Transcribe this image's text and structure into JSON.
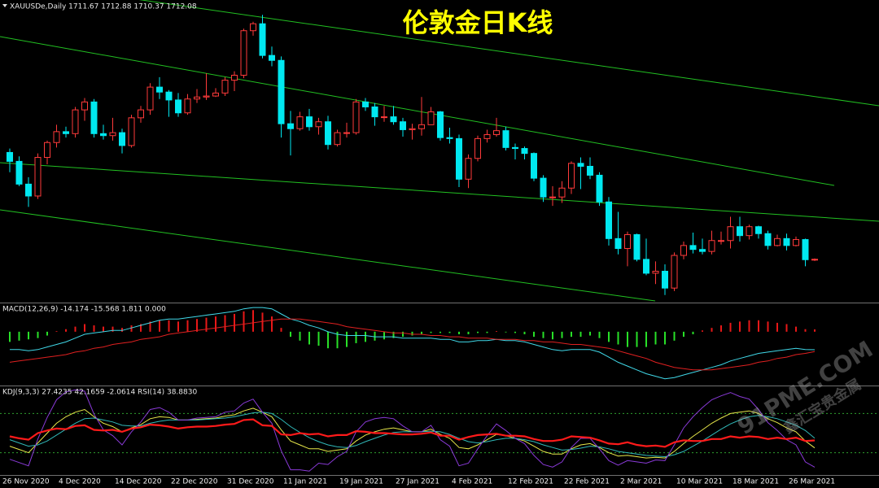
{
  "chart_data": [
    {
      "type": "candlestick",
      "title": "伦敦金日K线",
      "subtitle": "XAUUSDe,Daily  1711.67 1712.88 1710.37 1712.08",
      "up_color": "#ff3a3a",
      "down_color": "#00e8f0",
      "title_color": "#ffff00",
      "ylim": [
        1670,
        1974
      ],
      "categories": [
        "26 Nov 2020",
        null,
        null,
        null,
        null,
        null,
        "4 Dec 2020",
        null,
        null,
        null,
        null,
        null,
        "14 Dec 2020",
        null,
        null,
        null,
        null,
        null,
        "22 Dec 2020",
        null,
        null,
        null,
        null,
        null,
        "31 Dec 2020",
        null,
        null,
        null,
        null,
        null,
        "11 Jan 2021",
        null,
        null,
        null,
        null,
        null,
        "19 Jan 2021",
        null,
        null,
        null,
        null,
        null,
        "27 Jan 2021",
        null,
        null,
        null,
        null,
        null,
        "4 Feb 2021",
        null,
        null,
        null,
        null,
        null,
        "12 Feb 2021",
        null,
        null,
        null,
        null,
        null,
        "22 Feb 2021",
        null,
        null,
        null,
        null,
        null,
        "2 Mar 2021",
        null,
        null,
        null,
        null,
        null,
        "10 Mar 2021",
        null,
        null,
        null,
        null,
        null,
        "18 Mar 2021",
        null,
        null,
        null,
        null,
        null,
        "26 Mar 2021",
        null,
        null
      ],
      "open": [
        1820,
        1811,
        1788,
        1776,
        1815,
        1830,
        1841,
        1839,
        1863,
        1871,
        1839,
        1837,
        1840,
        1827,
        1855,
        1863,
        1886,
        1881,
        1873,
        1860,
        1874,
        1876,
        1877,
        1880,
        1893,
        1898,
        1943,
        1950,
        1918,
        1913,
        1849,
        1844,
        1856,
        1846,
        1851,
        1828,
        1840,
        1840,
        1871,
        1866,
        1856,
        1856,
        1851,
        1843,
        1844,
        1848,
        1861,
        1835,
        1834,
        1793,
        1814,
        1834,
        1838,
        1842,
        1825,
        1824,
        1819,
        1794,
        1775,
        1775,
        1784,
        1809,
        1806,
        1797,
        1770,
        1733,
        1723,
        1737,
        1712,
        1698,
        1700,
        1683,
        1716,
        1726,
        1722,
        1720,
        1731,
        1731,
        1745,
        1736,
        1745,
        1738,
        1726,
        1733,
        1726,
        1732,
        1711.67
      ],
      "high": [
        1824,
        1816,
        1795,
        1819,
        1832,
        1848,
        1846,
        1866,
        1875,
        1874,
        1848,
        1855,
        1844,
        1858,
        1867,
        1890,
        1896,
        1883,
        1880,
        1879,
        1884,
        1900,
        1885,
        1896,
        1902,
        1945,
        1952,
        1959,
        1927,
        1917,
        1862,
        1861,
        1864,
        1855,
        1857,
        1843,
        1850,
        1874,
        1875,
        1870,
        1867,
        1867,
        1855,
        1849,
        1876,
        1866,
        1862,
        1845,
        1838,
        1818,
        1837,
        1843,
        1855,
        1846,
        1829,
        1826,
        1820,
        1797,
        1786,
        1791,
        1811,
        1815,
        1815,
        1800,
        1775,
        1760,
        1740,
        1738,
        1733,
        1710,
        1707,
        1719,
        1730,
        1739,
        1733,
        1741,
        1740,
        1755,
        1755,
        1747,
        1746,
        1741,
        1737,
        1738,
        1735,
        1733,
        1712.88
      ],
      "low": [
        1800,
        1786,
        1765,
        1773,
        1808,
        1825,
        1835,
        1835,
        1852,
        1835,
        1833,
        1832,
        1819,
        1825,
        1850,
        1858,
        1874,
        1856,
        1856,
        1858,
        1870,
        1873,
        1876,
        1877,
        1882,
        1895,
        1938,
        1915,
        1907,
        1835,
        1817,
        1842,
        1842,
        1838,
        1823,
        1826,
        1835,
        1838,
        1862,
        1847,
        1851,
        1848,
        1836,
        1833,
        1837,
        1848,
        1832,
        1829,
        1785,
        1784,
        1811,
        1830,
        1836,
        1822,
        1813,
        1813,
        1791,
        1770,
        1766,
        1769,
        1778,
        1783,
        1793,
        1766,
        1726,
        1717,
        1705,
        1710,
        1696,
        1687,
        1676,
        1680,
        1712,
        1718,
        1717,
        1717,
        1727,
        1723,
        1730,
        1732,
        1733,
        1722,
        1725,
        1721,
        1725,
        1705,
        1710.37
      ],
      "close": [
        1811,
        1788,
        1776,
        1815,
        1830,
        1841,
        1839,
        1863,
        1871,
        1839,
        1837,
        1840,
        1827,
        1855,
        1863,
        1886,
        1881,
        1873,
        1860,
        1874,
        1876,
        1877,
        1880,
        1893,
        1898,
        1943,
        1950,
        1918,
        1913,
        1849,
        1844,
        1856,
        1846,
        1851,
        1828,
        1840,
        1840,
        1871,
        1866,
        1856,
        1856,
        1851,
        1843,
        1844,
        1848,
        1861,
        1835,
        1834,
        1793,
        1814,
        1834,
        1838,
        1842,
        1825,
        1824,
        1819,
        1794,
        1775,
        1775,
        1784,
        1809,
        1806,
        1797,
        1770,
        1733,
        1723,
        1737,
        1712,
        1698,
        1700,
        1683,
        1716,
        1726,
        1722,
        1720,
        1731,
        1731,
        1745,
        1736,
        1745,
        1738,
        1726,
        1733,
        1726,
        1732,
        1711.67,
        1712.08
      ]
    },
    {
      "type": "macd",
      "title": "MACD(12,26,9) -14.174 -15.568 1.811 0.000",
      "ylim": [
        -41,
        21
      ],
      "series": [
        {
          "kind": "histogram",
          "color": "#e81818",
          "negative_color": "#28e028",
          "values": [
            -8,
            -7,
            -6,
            -5,
            -3,
            0.5,
            2,
            4,
            6,
            5,
            4,
            4,
            3,
            5,
            6,
            8,
            9,
            9,
            8,
            9,
            10,
            11,
            12,
            13,
            14,
            16,
            17,
            15,
            12,
            3,
            -4,
            -7,
            -10,
            -11,
            -13,
            -13,
            -12,
            -9,
            -8,
            -7,
            -6,
            -5,
            -4,
            -3,
            -2,
            -1,
            -1,
            -1,
            -2,
            -2,
            -1,
            -1,
            0.5,
            -0.5,
            -1,
            -2,
            -4,
            -5,
            -6,
            -5,
            -4,
            -4,
            -3,
            -5,
            -8,
            -10,
            -12,
            -12,
            -12,
            -10,
            -10,
            -7,
            -4,
            -2,
            1,
            3,
            5,
            7,
            8,
            9,
            9,
            8,
            7,
            6,
            4,
            2,
            1.811
          ]
        },
        {
          "kind": "line",
          "color": "#40d8e8",
          "values": [
            -14,
            -14,
            -15,
            -14,
            -12,
            -10,
            -8,
            -5,
            -2,
            -1,
            0,
            1,
            1,
            3,
            5,
            7,
            9,
            10,
            10,
            11,
            12,
            13,
            14,
            15,
            16,
            18,
            19,
            19,
            18,
            14,
            10,
            8,
            5,
            3,
            0,
            -2,
            -3,
            -3,
            -3,
            -4,
            -4,
            -4,
            -5,
            -5,
            -5,
            -5,
            -6,
            -6,
            -8,
            -8,
            -7,
            -7,
            -6,
            -7,
            -7,
            -8,
            -10,
            -12,
            -14,
            -15,
            -14,
            -14,
            -14,
            -16,
            -20,
            -24,
            -27,
            -30,
            -33,
            -35,
            -37,
            -36,
            -34,
            -32,
            -30,
            -28,
            -26,
            -23,
            -21,
            -19,
            -17,
            -16,
            -15,
            -14,
            -13,
            -14,
            -14.174
          ]
        },
        {
          "kind": "line",
          "color": "#e02020",
          "values": [
            -24,
            -23,
            -22,
            -21,
            -20,
            -19,
            -18,
            -16,
            -15,
            -13,
            -12,
            -10,
            -9,
            -8,
            -6,
            -5,
            -4,
            -2,
            -1,
            0,
            1,
            2,
            3,
            4,
            5,
            6,
            7,
            8,
            9,
            10,
            10,
            10,
            9,
            8,
            7,
            6,
            4,
            3,
            2,
            1,
            0,
            -1,
            -1,
            -2,
            -2,
            -3,
            -3,
            -4,
            -4,
            -5,
            -5,
            -5,
            -6,
            -6,
            -6,
            -7,
            -7,
            -8,
            -8,
            -9,
            -10,
            -10,
            -11,
            -12,
            -13,
            -15,
            -17,
            -19,
            -21,
            -24,
            -26,
            -28,
            -29,
            -30,
            -30,
            -30,
            -29,
            -28,
            -27,
            -26,
            -24,
            -23,
            -21,
            -20,
            -18,
            -17,
            -15.568
          ]
        }
      ]
    },
    {
      "type": "line",
      "title": "KDJ(9,3,3) 27.4235 42.1659 -2.0614 RSI(14) 38.8830",
      "ylim": [
        -14,
        119
      ],
      "levels": [
        20,
        80
      ],
      "level_color": "#2ea02e",
      "series": [
        {
          "color": "#e8e84a",
          "width": 1,
          "values": [
            30,
            25,
            20,
            35,
            50,
            65,
            75,
            82,
            86,
            75,
            65,
            60,
            52,
            58,
            63,
            72,
            75,
            74,
            70,
            70,
            71,
            72,
            73,
            76,
            78,
            84,
            88,
            82,
            75,
            55,
            38,
            32,
            26,
            26,
            22,
            24,
            26,
            38,
            47,
            52,
            56,
            58,
            55,
            52,
            52,
            56,
            48,
            42,
            28,
            26,
            32,
            40,
            48,
            46,
            42,
            38,
            30,
            22,
            18,
            18,
            26,
            32,
            34,
            28,
            20,
            15,
            16,
            14,
            12,
            13,
            12,
            22,
            34,
            45,
            55,
            65,
            73,
            80,
            82,
            84,
            80,
            72,
            66,
            58,
            52,
            38,
            27.4235
          ]
        },
        {
          "color": "#30b8b8",
          "width": 1,
          "values": [
            40,
            35,
            30,
            32,
            38,
            47,
            56,
            65,
            72,
            73,
            70,
            67,
            62,
            61,
            61,
            65,
            68,
            70,
            70,
            70,
            70,
            71,
            72,
            73,
            75,
            78,
            81,
            82,
            80,
            71,
            60,
            51,
            43,
            37,
            32,
            29,
            28,
            31,
            37,
            42,
            47,
            51,
            52,
            52,
            52,
            53,
            52,
            48,
            42,
            37,
            35,
            37,
            40,
            42,
            42,
            40,
            37,
            32,
            28,
            24,
            25,
            27,
            30,
            29,
            26,
            22,
            20,
            18,
            16,
            15,
            14,
            17,
            22,
            30,
            38,
            47,
            56,
            64,
            70,
            75,
            77,
            75,
            72,
            67,
            62,
            54,
            42.1659
          ]
        },
        {
          "color": "#8a3ad8",
          "width": 1,
          "values": [
            10,
            5,
            0,
            41,
            74,
            101,
            113,
            116,
            114,
            79,
            55,
            46,
            32,
            52,
            67,
            86,
            89,
            82,
            70,
            70,
            73,
            74,
            75,
            82,
            84,
            96,
            102,
            82,
            65,
            23,
            -6,
            -6,
            -8,
            4,
            2,
            14,
            22,
            52,
            67,
            72,
            74,
            72,
            61,
            52,
            52,
            62,
            40,
            30,
            0,
            4,
            26,
            46,
            64,
            54,
            42,
            34,
            16,
            2,
            -2,
            6,
            28,
            42,
            42,
            26,
            8,
            1,
            8,
            6,
            4,
            9,
            8,
            32,
            58,
            75,
            89,
            101,
            107,
            112,
            106,
            102,
            86,
            66,
            54,
            40,
            32,
            6,
            -2.0614
          ]
        },
        {
          "color": "#ff1a1a",
          "width": 2.2,
          "values": [
            45,
            42,
            40,
            50,
            54,
            57,
            56,
            61,
            62,
            55,
            54,
            55,
            52,
            57,
            59,
            63,
            62,
            60,
            57,
            59,
            60,
            60,
            61,
            63,
            64,
            70,
            71,
            62,
            61,
            48,
            47,
            50,
            48,
            49,
            45,
            47,
            47,
            53,
            52,
            50,
            50,
            49,
            48,
            48,
            49,
            51,
            46,
            46,
            40,
            44,
            47,
            48,
            49,
            46,
            46,
            45,
            41,
            38,
            38,
            40,
            45,
            44,
            43,
            39,
            34,
            33,
            36,
            32,
            30,
            31,
            29,
            36,
            39,
            38,
            38,
            41,
            41,
            45,
            43,
            45,
            44,
            41,
            43,
            41,
            43,
            38,
            38.883
          ]
        }
      ]
    }
  ],
  "watermark": {
    "site": "91PME.COM",
    "brand": "鑫汇宝贵金属"
  }
}
